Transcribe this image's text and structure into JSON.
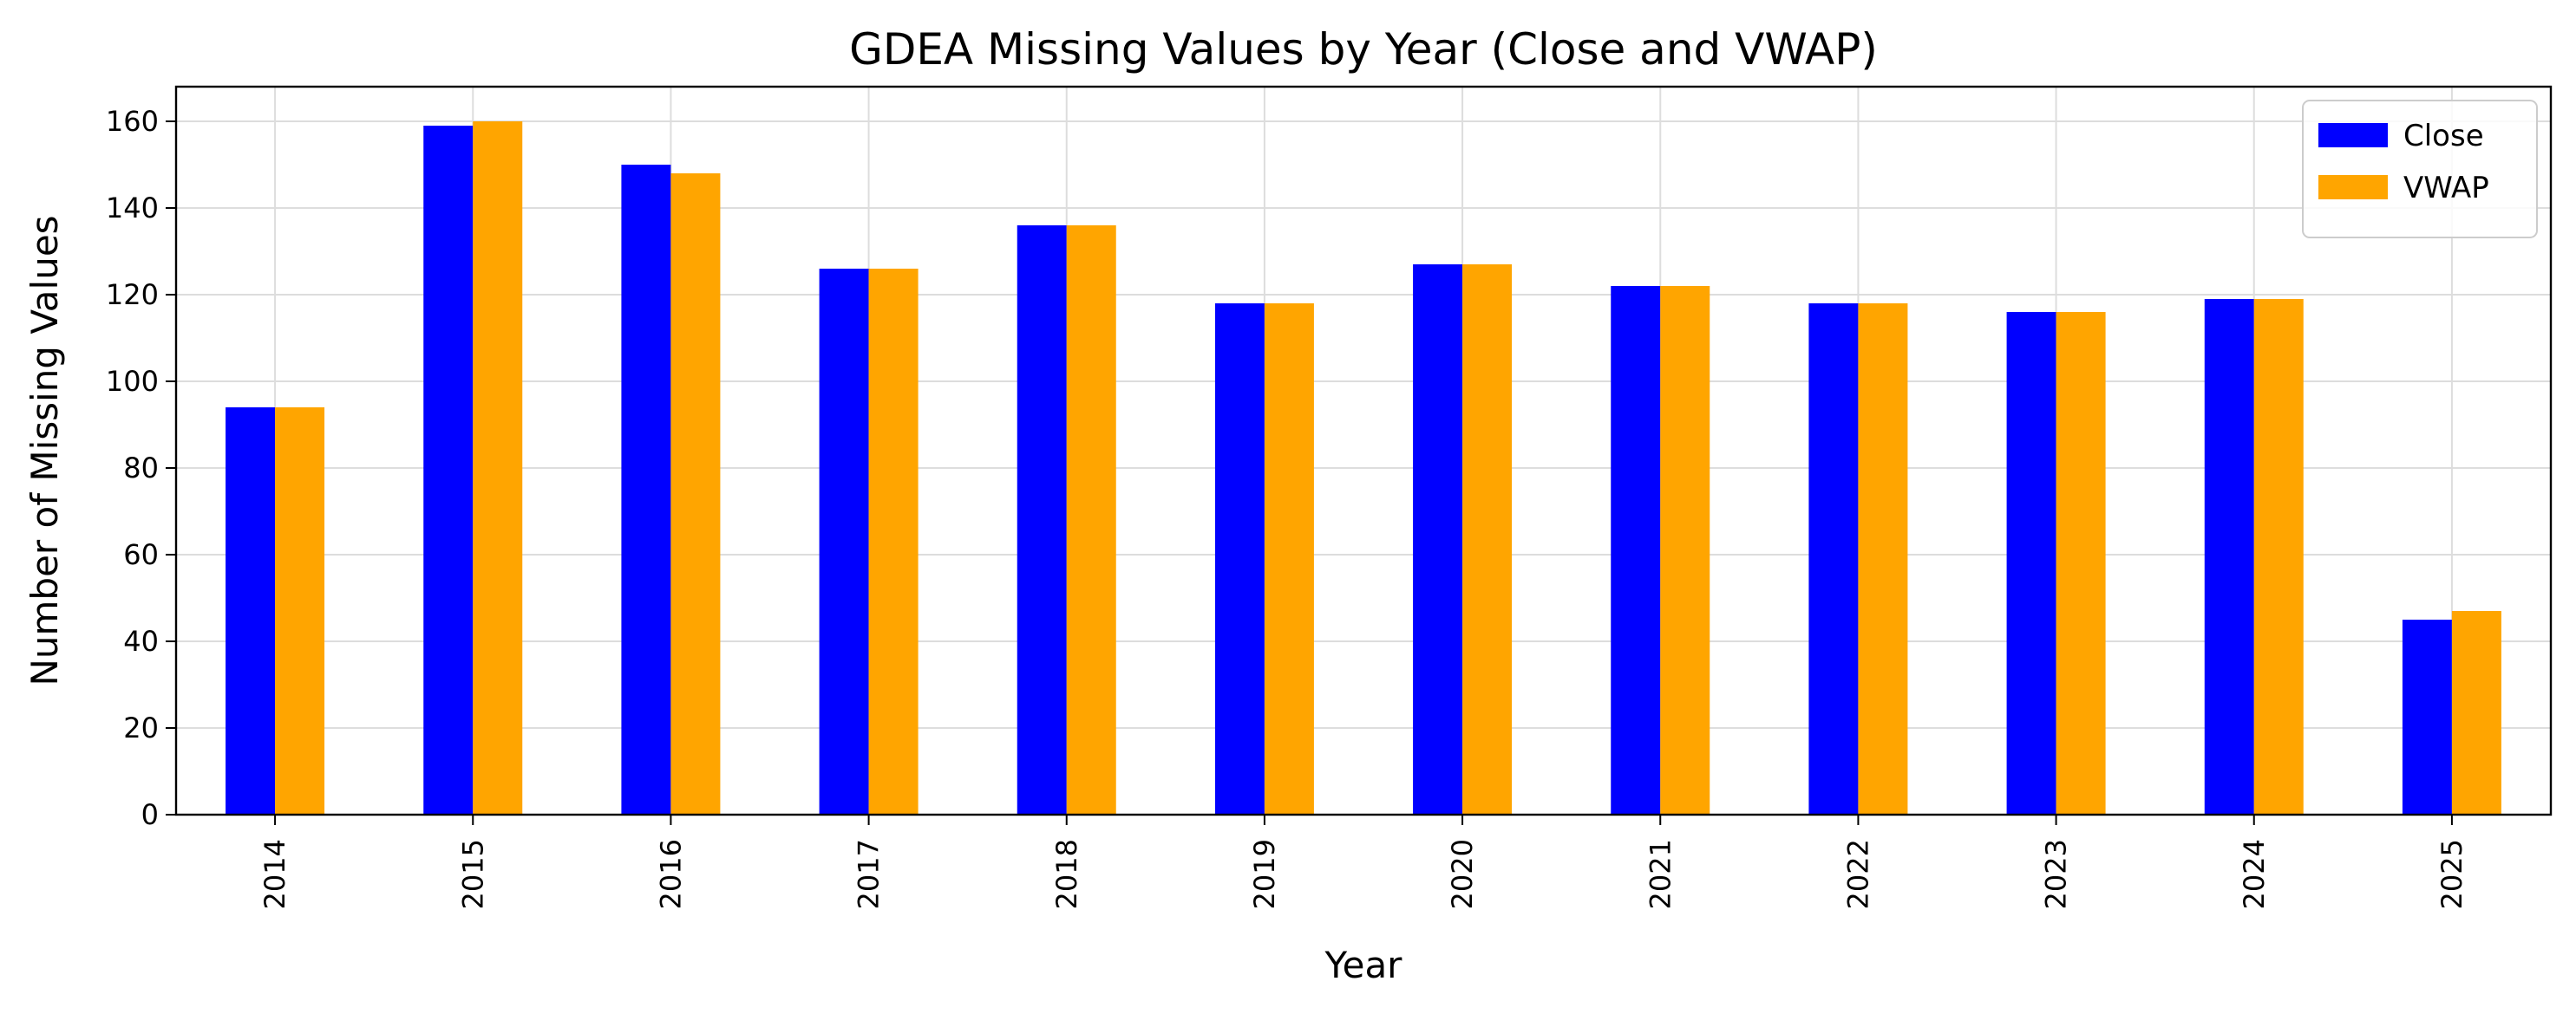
{
  "chart_data": {
    "type": "bar",
    "title": "GDEA Missing Values by Year (Close and VWAP)",
    "xlabel": "Year",
    "ylabel": "Number of Missing Values",
    "categories": [
      "2014",
      "2015",
      "2016",
      "2017",
      "2018",
      "2019",
      "2020",
      "2021",
      "2022",
      "2023",
      "2024",
      "2025"
    ],
    "series": [
      {
        "name": "Close",
        "color": "#0000ff",
        "values": [
          94,
          159,
          150,
          126,
          136,
          118,
          127,
          122,
          118,
          116,
          119,
          45
        ]
      },
      {
        "name": "VWAP",
        "color": "#ffa500",
        "values": [
          94,
          160,
          148,
          126,
          136,
          118,
          127,
          122,
          118,
          116,
          119,
          47
        ]
      }
    ],
    "ylim": [
      0,
      168
    ],
    "yticks": [
      0,
      20,
      40,
      60,
      80,
      100,
      120,
      140,
      160
    ],
    "grid": true,
    "legend_position": "top-right"
  }
}
